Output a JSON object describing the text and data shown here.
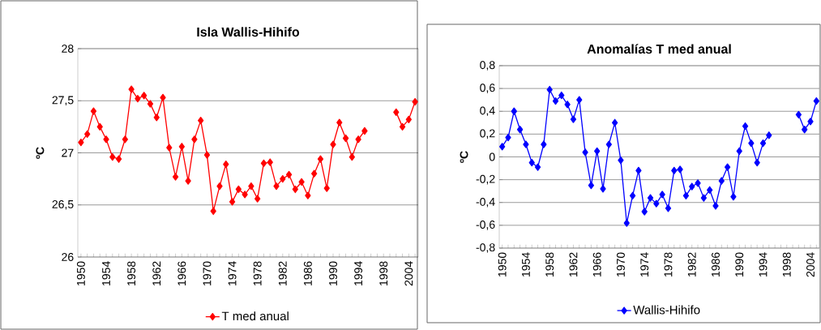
{
  "chart_data": [
    {
      "type": "line",
      "title": "Isla Wallis-Hihifo",
      "ylabel": "ºC",
      "categories": [
        "1950",
        null,
        null,
        null,
        "1954",
        null,
        null,
        null,
        "1958",
        null,
        null,
        null,
        "1962",
        null,
        null,
        null,
        "1966",
        null,
        null,
        null,
        "1970",
        null,
        null,
        null,
        "1974",
        null,
        null,
        null,
        "1978",
        null,
        null,
        null,
        "1982",
        null,
        null,
        null,
        "1986",
        null,
        null,
        null,
        "1990",
        null,
        null,
        null,
        "1994",
        null,
        null,
        null,
        "1998",
        null,
        null,
        null,
        "2004",
        null
      ],
      "series": [
        {
          "name": "T med anual",
          "color": "#ff0000",
          "values": [
            27.1,
            27.18,
            27.4,
            27.25,
            27.13,
            26.96,
            26.94,
            27.13,
            27.61,
            27.52,
            27.55,
            27.47,
            27.34,
            27.53,
            27.05,
            26.77,
            27.06,
            26.73,
            27.13,
            27.31,
            26.98,
            26.44,
            26.68,
            26.89,
            26.53,
            26.65,
            26.6,
            26.68,
            26.56,
            26.9,
            26.91,
            26.68,
            26.75,
            26.79,
            26.65,
            26.72,
            26.59,
            26.8,
            26.94,
            26.66,
            27.08,
            27.29,
            27.14,
            26.96,
            27.13,
            27.21,
            null,
            null,
            null,
            null,
            27.39,
            27.25,
            27.32,
            27.49
          ]
        }
      ],
      "ylim": [
        26,
        28
      ],
      "yticks": [
        26,
        {
          "value": 26.5,
          "label": "26,5"
        },
        27,
        {
          "value": 27.5,
          "label": "27,5"
        },
        28
      ],
      "grid": "y",
      "legend": "bottom",
      "marker": "diamond",
      "line_style": "solid"
    },
    {
      "type": "line",
      "title": "Anomalías T med anual",
      "ylabel": "ºC",
      "categories": [
        "1950",
        null,
        null,
        null,
        "1954",
        null,
        null,
        null,
        "1958",
        null,
        null,
        null,
        "1962",
        null,
        null,
        null,
        "1966",
        null,
        null,
        null,
        "1970",
        null,
        null,
        null,
        "1974",
        null,
        null,
        null,
        "1978",
        null,
        null,
        null,
        "1982",
        null,
        null,
        null,
        "1986",
        null,
        null,
        null,
        "1990",
        null,
        null,
        null,
        "1994",
        null,
        null,
        null,
        "1998",
        null,
        null,
        null,
        "2004",
        null
      ],
      "series": [
        {
          "name": "Wallis-Hihifo",
          "color": "#0000ff",
          "values": [
            0.09,
            0.17,
            0.4,
            0.24,
            0.11,
            -0.05,
            -0.09,
            0.11,
            0.59,
            0.49,
            0.54,
            0.46,
            0.33,
            0.5,
            0.04,
            -0.25,
            0.05,
            -0.28,
            0.11,
            0.3,
            -0.03,
            -0.58,
            -0.34,
            -0.12,
            -0.48,
            -0.36,
            -0.41,
            -0.33,
            -0.45,
            -0.12,
            -0.11,
            -0.34,
            -0.26,
            -0.23,
            -0.36,
            -0.29,
            -0.43,
            -0.21,
            -0.09,
            -0.35,
            0.05,
            0.27,
            0.12,
            -0.05,
            0.12,
            0.19,
            null,
            null,
            null,
            null,
            0.37,
            0.24,
            0.31,
            0.49
          ]
        }
      ],
      "ylim": [
        -0.8,
        0.8
      ],
      "yticks": [
        {
          "value": -0.8,
          "label": "-0,8"
        },
        {
          "value": -0.6,
          "label": "-0,6"
        },
        {
          "value": -0.4,
          "label": "-0,4"
        },
        {
          "value": -0.2,
          "label": "-0,2"
        },
        0,
        {
          "value": 0.2,
          "label": "0,2"
        },
        {
          "value": 0.4,
          "label": "0,4"
        },
        {
          "value": 0.6,
          "label": "0,6"
        },
        {
          "value": 0.8,
          "label": "0,8"
        }
      ],
      "grid": "y",
      "legend": "bottom",
      "marker": "diamond",
      "line_style": "solid"
    }
  ]
}
